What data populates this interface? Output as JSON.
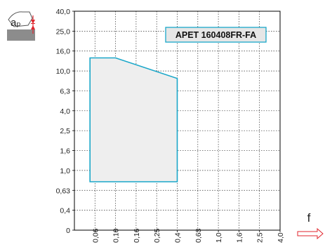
{
  "chart_data": {
    "type": "area",
    "title": "APET 160408FR-FA",
    "ylabel": "aₚ",
    "xlabel": "f",
    "y_tick_labels": [
      "0",
      "0,4",
      "0,63",
      "1,0",
      "1,6",
      "2,5",
      "4,0",
      "6,3",
      "10,0",
      "16,0",
      "25,0",
      "40,0"
    ],
    "x_tick_labels": [
      "0,06",
      "0,10",
      "0,16",
      "0,25",
      "0,4",
      "0,63",
      "1,0",
      "1,6",
      "2,5",
      "4,0"
    ],
    "series": [
      {
        "region_points": [
          {
            "f": 0.053,
            "ap": 13.6
          },
          {
            "f": 0.1,
            "ap": 13.6
          },
          {
            "f": 0.4,
            "ap": 8.4
          },
          {
            "f": 0.4,
            "ap": 0.77
          },
          {
            "f": 0.053,
            "ap": 0.77
          }
        ]
      }
    ],
    "grid": true,
    "fill_color": "#eeeeee",
    "outline_color": "#1aa7c9"
  },
  "icons": {
    "ap_symbol": "cutting-depth-icon",
    "f_arrow": "feed-direction-arrow-icon"
  },
  "colors": {
    "accent": "#1aa7c9",
    "title_box": "#e6e6e6",
    "marker": "#e0262e"
  }
}
